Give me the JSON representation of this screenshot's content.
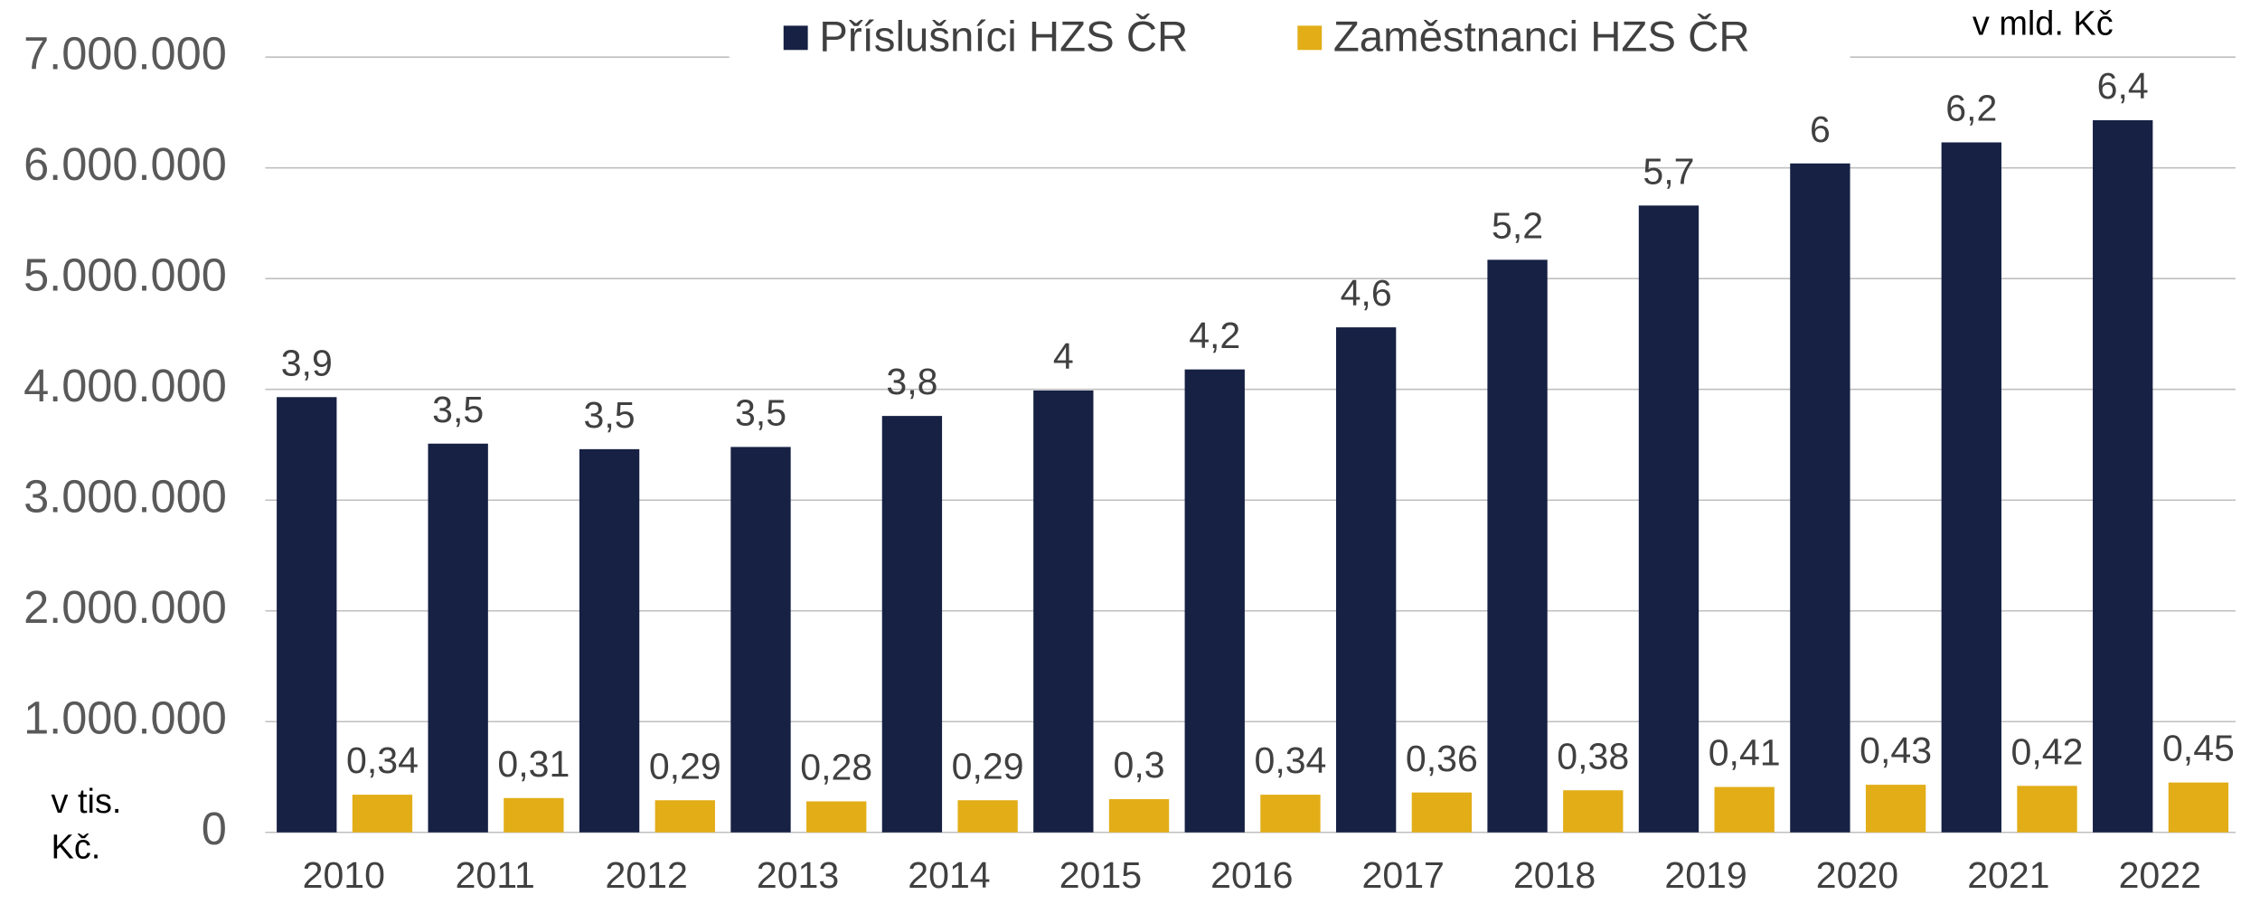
{
  "chart_data": {
    "type": "bar",
    "categories": [
      "2010",
      "2011",
      "2012",
      "2013",
      "2014",
      "2015",
      "2016",
      "2017",
      "2018",
      "2019",
      "2020",
      "2021",
      "2022"
    ],
    "series": [
      {
        "name": "Příslušníci HZS ČR",
        "color": "#162144",
        "values": [
          3930000,
          3510000,
          3460000,
          3480000,
          3760000,
          3990000,
          4180000,
          4560000,
          5170000,
          5660000,
          6040000,
          6230000,
          6430000
        ],
        "value_labels": [
          "3,9",
          "3,5",
          "3,5",
          "3,5",
          "3,8",
          "4",
          "4,2",
          "4,6",
          "5,2",
          "5,7",
          "6",
          "6,2",
          "6,4"
        ]
      },
      {
        "name": "Zaměstnanci HZS ČR",
        "color": "#e2ad17",
        "values": [
          340000,
          310000,
          290000,
          280000,
          290000,
          300000,
          340000,
          360000,
          380000,
          410000,
          430000,
          420000,
          450000
        ],
        "value_labels": [
          "0,34",
          "0,31",
          "0,29",
          "0,28",
          "0,29",
          "0,3",
          "0,34",
          "0,36",
          "0,38",
          "0,41",
          "0,43",
          "0,42",
          "0,45"
        ]
      }
    ],
    "ylim": [
      0,
      7000000
    ],
    "yticks": [
      0,
      {
        "value": 1000000,
        "label": "1.000.000"
      },
      {
        "value": 2000000,
        "label": "2.000.000"
      },
      {
        "value": 3000000,
        "label": "3.000.000"
      },
      {
        "value": 4000000,
        "label": "4.000.000"
      },
      {
        "value": 5000000,
        "label": "5.000.000"
      },
      {
        "value": 6000000,
        "label": "6.000.000"
      },
      {
        "value": 7000000,
        "label": "7.000.000"
      }
    ],
    "grid": true,
    "legend": "top",
    "ylabel": [
      "v tis.",
      "Kč."
    ],
    "annotation": "v mld. Kč"
  }
}
